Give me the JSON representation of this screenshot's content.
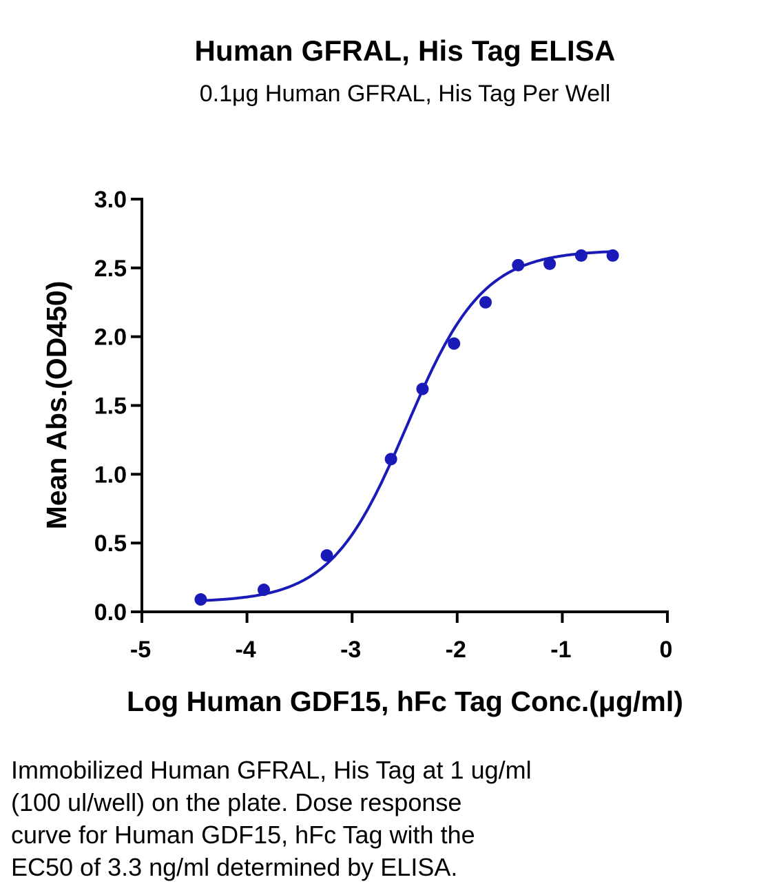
{
  "colors": {
    "series": "#1a1ab8",
    "axis": "#000000",
    "background": "#ffffff"
  },
  "chart_data": {
    "type": "scatter",
    "title": "Human GFRAL, His Tag ELISA",
    "subtitle": "0.1μg Human GFRAL, His Tag Per Well",
    "xlabel": "Log Human GDF15, hFc Tag Conc.(μg/ml)",
    "ylabel": "Mean Abs.(OD450)",
    "xlim": [
      -5,
      0
    ],
    "ylim": [
      0,
      3
    ],
    "x_ticks": [
      -5,
      -4,
      -3,
      -2,
      -1,
      0
    ],
    "x_tick_labels": [
      "-5",
      "-4",
      "-3",
      "-2",
      "-1",
      "0"
    ],
    "y_ticks": [
      0,
      0.5,
      1,
      1.5,
      2,
      2.5,
      3
    ],
    "y_tick_labels": [
      "0.0",
      "0.5",
      "1.0",
      "1.5",
      "2.0",
      "2.5",
      "3.0"
    ],
    "grid": false,
    "legend": "none",
    "series": [
      {
        "points": [
          {
            "x": -4.44,
            "y": 0.09
          },
          {
            "x": -3.84,
            "y": 0.16
          },
          {
            "x": -3.24,
            "y": 0.41
          },
          {
            "x": -2.63,
            "y": 1.11
          },
          {
            "x": -2.33,
            "y": 1.62
          },
          {
            "x": -2.03,
            "y": 1.95
          },
          {
            "x": -1.73,
            "y": 2.25
          },
          {
            "x": -1.42,
            "y": 2.52
          },
          {
            "x": -1.12,
            "y": 2.53
          },
          {
            "x": -0.82,
            "y": 2.59
          },
          {
            "x": -0.52,
            "y": 2.59
          }
        ],
        "fit": {
          "model": "4PL",
          "bottom": 0.07,
          "top": 2.63,
          "logEC50": -2.48,
          "hill": 1.2
        }
      }
    ]
  },
  "caption": {
    "lines": [
      "Immobilized Human GFRAL, His Tag at 1 ug/ml",
      "(100 ul/well) on the plate. Dose response",
      "curve for Human GDF15, hFc Tag with the",
      "EC50 of 3.3 ng/ml determined by ELISA."
    ]
  }
}
